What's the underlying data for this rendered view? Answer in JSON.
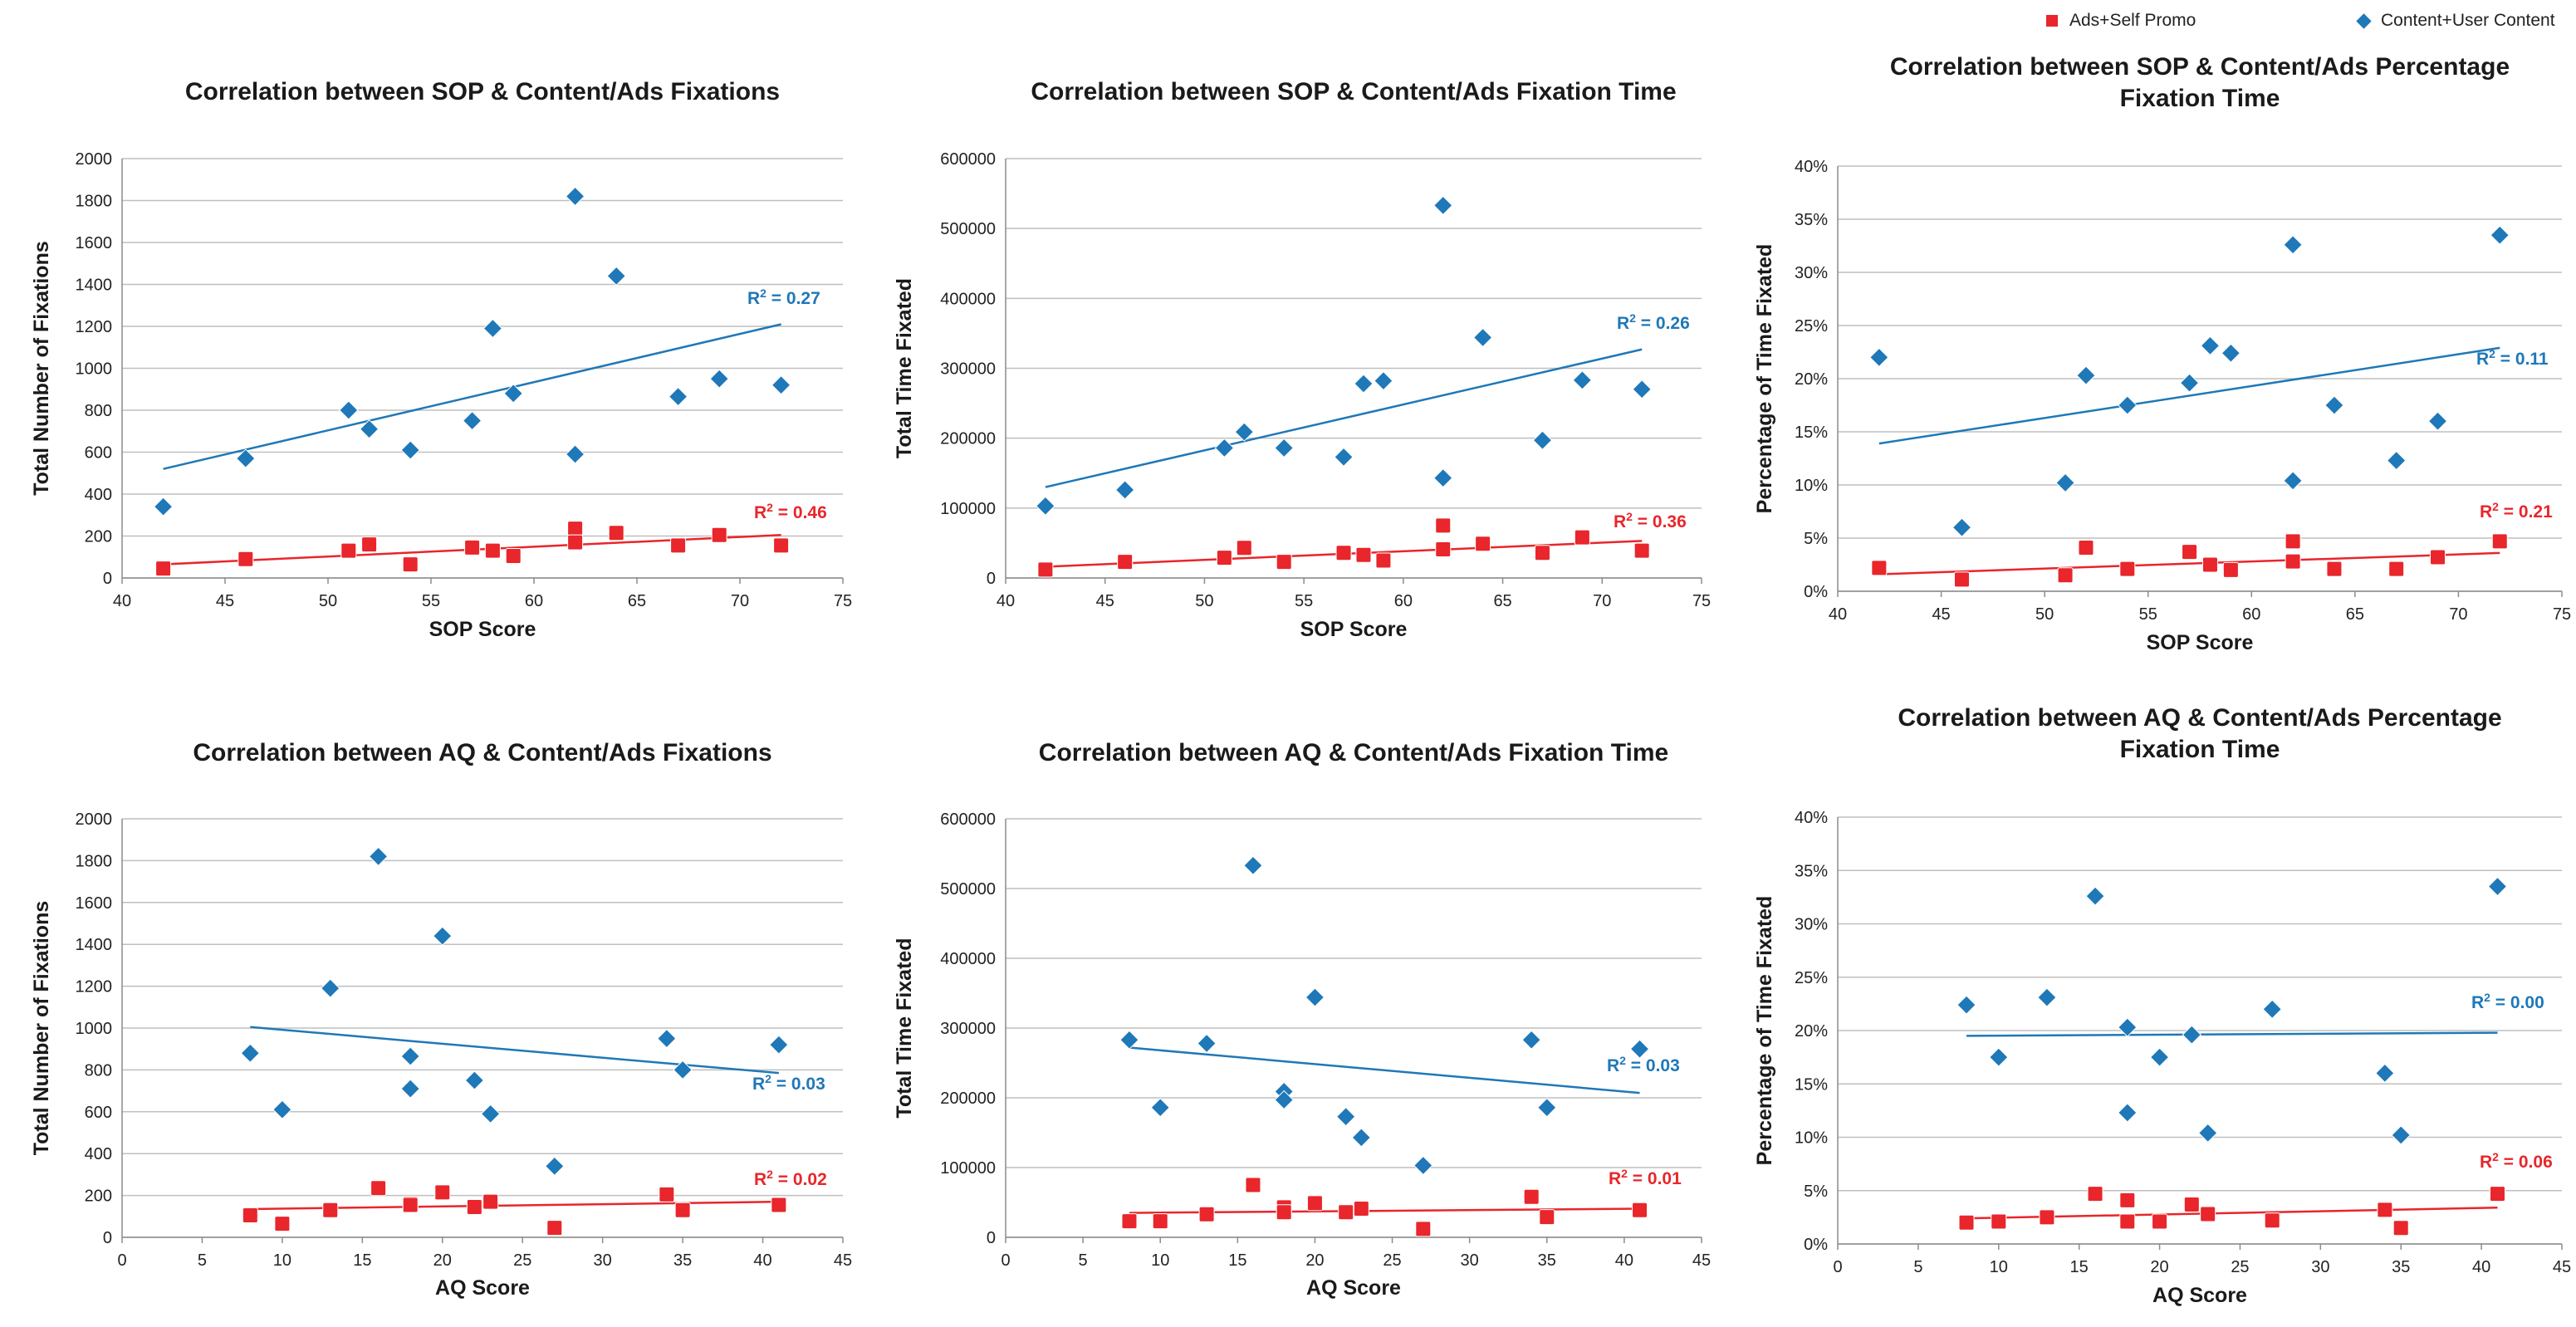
{
  "legend": {
    "ads_label": "Ads+Self Promo",
    "content_label": "Content+User Content",
    "ads_color": "#e8262b",
    "content_color": "#1f78b8"
  },
  "chart_data": [
    {
      "type": "scatter",
      "title": [
        "Correlation between SOP & Content/Ads Fixations"
      ],
      "xlabel": "SOP Score",
      "ylabel": "Total Number of Fixations",
      "xlim": [
        40,
        75
      ],
      "xticks": [
        40,
        45,
        50,
        55,
        60,
        65,
        70,
        75
      ],
      "ylim": [
        0,
        2000
      ],
      "yticks": [
        0,
        200,
        400,
        600,
        800,
        1000,
        1200,
        1400,
        1600,
        1800,
        2000
      ],
      "yformat": "int",
      "grid": true,
      "series": [
        {
          "name": "Content+User Content",
          "color": "#1f78b8",
          "marker": "diamond",
          "x": [
            42,
            46,
            51,
            52,
            54,
            57,
            58,
            59,
            62,
            62,
            64,
            67,
            69,
            72
          ],
          "y": [
            340,
            570,
            800,
            710,
            610,
            750,
            1190,
            880,
            1820,
            590,
            1440,
            865,
            950,
            920
          ],
          "trend": {
            "x": [
              42,
              72
            ],
            "y": [
              520,
              1210
            ]
          },
          "r2": "0.27"
        },
        {
          "name": "Ads+Self Promo",
          "color": "#e8262b",
          "marker": "square",
          "x": [
            42,
            46,
            51,
            52,
            54,
            57,
            58,
            59,
            62,
            62,
            64,
            67,
            69,
            72
          ],
          "y": [
            45,
            90,
            130,
            160,
            65,
            145,
            130,
            105,
            235,
            170,
            215,
            155,
            205,
            155
          ],
          "trend": {
            "x": [
              42,
              72
            ],
            "y": [
              65,
              205
            ]
          },
          "r2": "0.46"
        }
      ]
    },
    {
      "type": "scatter",
      "title": [
        "Correlation between SOP & Content/Ads Fixation Time"
      ],
      "xlabel": "SOP Score",
      "ylabel": "Total Time Fixated",
      "xlim": [
        40,
        75
      ],
      "xticks": [
        40,
        45,
        50,
        55,
        60,
        65,
        70,
        75
      ],
      "ylim": [
        0,
        600000
      ],
      "yticks": [
        0,
        100000,
        200000,
        300000,
        400000,
        500000,
        600000
      ],
      "yformat": "int",
      "grid": true,
      "series": [
        {
          "name": "Content+User Content",
          "color": "#1f78b8",
          "marker": "diamond",
          "x": [
            42,
            46,
            51,
            52,
            54,
            57,
            58,
            59,
            62,
            62,
            64,
            67,
            69,
            72
          ],
          "y": [
            103000,
            126000,
            186000,
            209000,
            186000,
            173000,
            278000,
            282000,
            533000,
            143000,
            344000,
            197000,
            283000,
            270000
          ],
          "trend": {
            "x": [
              42,
              72
            ],
            "y": [
              130000,
              327000
            ]
          },
          "r2": "0.26"
        },
        {
          "name": "Ads+Self Promo",
          "color": "#e8262b",
          "marker": "square",
          "x": [
            42,
            46,
            51,
            52,
            54,
            57,
            58,
            59,
            62,
            62,
            64,
            67,
            69,
            72
          ],
          "y": [
            12000,
            23000,
            29000,
            43000,
            23000,
            36000,
            33000,
            25000,
            75000,
            41000,
            49000,
            36000,
            58000,
            39000
          ],
          "trend": {
            "x": [
              42,
              72
            ],
            "y": [
              16000,
              53000
            ]
          },
          "r2": "0.36"
        }
      ]
    },
    {
      "type": "scatter",
      "title": [
        "Correlation between SOP & Content/Ads Percentage",
        "Fixation Time"
      ],
      "xlabel": "SOP Score",
      "ylabel": "Percentage of Time Fixated",
      "xlim": [
        40,
        75
      ],
      "xticks": [
        40,
        45,
        50,
        55,
        60,
        65,
        70,
        75
      ],
      "ylim": [
        0,
        0.4
      ],
      "yticks": [
        0,
        0.05,
        0.1,
        0.15,
        0.2,
        0.25,
        0.3,
        0.35,
        0.4
      ],
      "yformat": "pct",
      "grid": true,
      "series": [
        {
          "name": "Content+User Content",
          "color": "#1f78b8",
          "marker": "diamond",
          "x": [
            42,
            46,
            51,
            52,
            54,
            57,
            58,
            59,
            62,
            62,
            64,
            67,
            69,
            72
          ],
          "y": [
            0.22,
            0.06,
            0.102,
            0.203,
            0.175,
            0.196,
            0.231,
            0.224,
            0.326,
            0.104,
            0.175,
            0.123,
            0.16,
            0.335
          ],
          "trend": {
            "x": [
              42,
              72
            ],
            "y": [
              0.139,
              0.229
            ]
          },
          "r2": "0.11"
        },
        {
          "name": "Ads+Self Promo",
          "color": "#e8262b",
          "marker": "square",
          "x": [
            42,
            46,
            51,
            52,
            54,
            57,
            58,
            59,
            62,
            62,
            64,
            67,
            69,
            72
          ],
          "y": [
            0.022,
            0.011,
            0.015,
            0.041,
            0.021,
            0.037,
            0.025,
            0.02,
            0.047,
            0.028,
            0.021,
            0.021,
            0.032,
            0.047
          ],
          "trend": {
            "x": [
              42,
              72
            ],
            "y": [
              0.016,
              0.036
            ]
          },
          "r2": "0.21"
        }
      ]
    },
    {
      "type": "scatter",
      "title": [
        "Correlation between AQ   & Content/Ads Fixations"
      ],
      "xlabel": "AQ Score",
      "ylabel": "Total Number of Fixations",
      "xlim": [
        0,
        45
      ],
      "xticks": [
        0,
        5,
        10,
        15,
        20,
        25,
        30,
        35,
        40,
        45
      ],
      "ylim": [
        0,
        2000
      ],
      "yticks": [
        0,
        200,
        400,
        600,
        800,
        1000,
        1200,
        1400,
        1600,
        1800,
        2000
      ],
      "yformat": "int",
      "grid": true,
      "series": [
        {
          "name": "Content+User Content",
          "color": "#1f78b8",
          "marker": "diamond",
          "x": [
            8,
            10,
            13,
            16,
            18,
            18,
            20,
            22,
            23,
            27,
            34,
            35,
            41
          ],
          "y": [
            880,
            610,
            1190,
            1820,
            865,
            710,
            1440,
            750,
            590,
            340,
            950,
            800,
            920
          ],
          "trend": {
            "x": [
              8,
              41
            ],
            "y": [
              1005,
              785
            ]
          },
          "r2": "0.03"
        },
        {
          "name": "Ads+Self Promo",
          "color": "#e8262b",
          "marker": "square",
          "x": [
            8,
            10,
            13,
            16,
            18,
            18,
            20,
            22,
            23,
            27,
            34,
            35,
            41
          ],
          "y": [
            105,
            65,
            130,
            235,
            160,
            155,
            215,
            145,
            170,
            45,
            205,
            130,
            155
          ],
          "trend": {
            "x": [
              8,
              41
            ],
            "y": [
              135,
              170
            ]
          },
          "r2": "0.02"
        }
      ]
    },
    {
      "type": "scatter",
      "title": [
        "Correlation between AQ   & Content/Ads Fixation Time"
      ],
      "xlabel": "AQ Score",
      "ylabel": "Total Time Fixated",
      "xlim": [
        0,
        45
      ],
      "xticks": [
        0,
        5,
        10,
        15,
        20,
        25,
        30,
        35,
        40,
        45
      ],
      "ylim": [
        0,
        600000
      ],
      "yticks": [
        0,
        100000,
        200000,
        300000,
        400000,
        500000,
        600000
      ],
      "yformat": "int",
      "grid": true,
      "series": [
        {
          "name": "Content+User Content",
          "color": "#1f78b8",
          "marker": "diamond",
          "x": [
            8,
            10,
            13,
            16,
            18,
            18,
            20,
            22,
            23,
            27,
            34,
            35,
            41
          ],
          "y": [
            283000,
            186000,
            278000,
            533000,
            209000,
            197000,
            344000,
            173000,
            143000,
            103000,
            283000,
            186000,
            270000
          ],
          "trend": {
            "x": [
              8,
              41
            ],
            "y": [
              272000,
              207000
            ]
          },
          "r2": "0.03"
        },
        {
          "name": "Ads+Self Promo",
          "color": "#e8262b",
          "marker": "square",
          "x": [
            8,
            10,
            13,
            16,
            18,
            18,
            20,
            22,
            23,
            27,
            34,
            35,
            41
          ],
          "y": [
            23000,
            23000,
            33000,
            75000,
            43000,
            36000,
            49000,
            36000,
            41000,
            12000,
            58000,
            29000,
            39000
          ],
          "trend": {
            "x": [
              8,
              41
            ],
            "y": [
              35000,
              41000
            ]
          },
          "r2": "0.01"
        }
      ]
    },
    {
      "type": "scatter",
      "title": [
        "Correlation between AQ   & Content/Ads Percentage",
        "Fixation Time"
      ],
      "xlabel": "AQ Score",
      "ylabel": "Percentage of Time Fixated",
      "xlim": [
        0,
        45
      ],
      "xticks": [
        0,
        5,
        10,
        15,
        20,
        25,
        30,
        35,
        40,
        45
      ],
      "ylim": [
        0,
        0.4
      ],
      "yticks": [
        0,
        0.05,
        0.1,
        0.15,
        0.2,
        0.25,
        0.3,
        0.35,
        0.4
      ],
      "yformat": "pct",
      "grid": true,
      "series": [
        {
          "name": "Content+User Content",
          "color": "#1f78b8",
          "marker": "diamond",
          "x": [
            8,
            10,
            13,
            16,
            18,
            18,
            20,
            22,
            23,
            27,
            34,
            35,
            41
          ],
          "y": [
            0.224,
            0.175,
            0.231,
            0.326,
            0.203,
            0.123,
            0.175,
            0.196,
            0.104,
            0.22,
            0.16,
            0.102,
            0.335
          ],
          "trend": {
            "x": [
              8,
              41
            ],
            "y": [
              0.195,
              0.198
            ]
          },
          "r2": "0.00"
        },
        {
          "name": "Ads+Self Promo",
          "color": "#e8262b",
          "marker": "square",
          "x": [
            8,
            10,
            13,
            16,
            18,
            18,
            20,
            22,
            23,
            27,
            34,
            35,
            41
          ],
          "y": [
            0.02,
            0.021,
            0.025,
            0.047,
            0.041,
            0.021,
            0.021,
            0.037,
            0.028,
            0.022,
            0.032,
            0.015,
            0.047
          ],
          "trend": {
            "x": [
              8,
              41
            ],
            "y": [
              0.024,
              0.034
            ]
          },
          "r2": "0.06"
        }
      ]
    }
  ]
}
